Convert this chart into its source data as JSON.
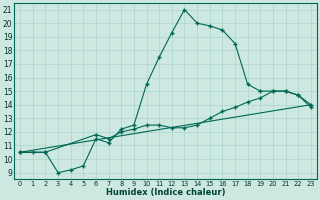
{
  "xlabel": "Humidex (Indice chaleur)",
  "background_color": "#cce8e0",
  "line_color": "#006655",
  "xlim": [
    -0.5,
    23.5
  ],
  "ylim": [
    8.5,
    21.5
  ],
  "xticks": [
    0,
    1,
    2,
    3,
    4,
    5,
    6,
    7,
    8,
    9,
    10,
    11,
    12,
    13,
    14,
    15,
    16,
    17,
    18,
    19,
    20,
    21,
    22,
    23
  ],
  "yticks": [
    9,
    10,
    11,
    12,
    13,
    14,
    15,
    16,
    17,
    18,
    19,
    20,
    21
  ],
  "line1_x": [
    0,
    1,
    2,
    3,
    4,
    5,
    6,
    7,
    8,
    9,
    10,
    11,
    12,
    13,
    14,
    15,
    16,
    17,
    18,
    19,
    20,
    21,
    22,
    23
  ],
  "line1_y": [
    10.5,
    10.5,
    10.5,
    9.0,
    9.2,
    9.5,
    11.5,
    11.2,
    12.2,
    12.5,
    15.5,
    17.5,
    19.3,
    21.0,
    20.0,
    19.8,
    19.5,
    18.5,
    15.5,
    15.0,
    15.0,
    15.0,
    14.7,
    13.8
  ],
  "line2_x": [
    0,
    2,
    6,
    7,
    8,
    9,
    10,
    11,
    12,
    13,
    14,
    15,
    16,
    17,
    18,
    19,
    20,
    21,
    22,
    23
  ],
  "line2_y": [
    10.5,
    10.5,
    11.8,
    11.5,
    12.0,
    12.2,
    12.5,
    12.5,
    12.3,
    12.3,
    12.5,
    13.0,
    13.5,
    13.8,
    14.2,
    14.5,
    15.0,
    15.0,
    14.7,
    14.0
  ],
  "line3_x": [
    0,
    23
  ],
  "line3_y": [
    10.5,
    14.0
  ],
  "grid_color": "#aad4cc",
  "markersize": 3.5,
  "linewidth": 0.8
}
